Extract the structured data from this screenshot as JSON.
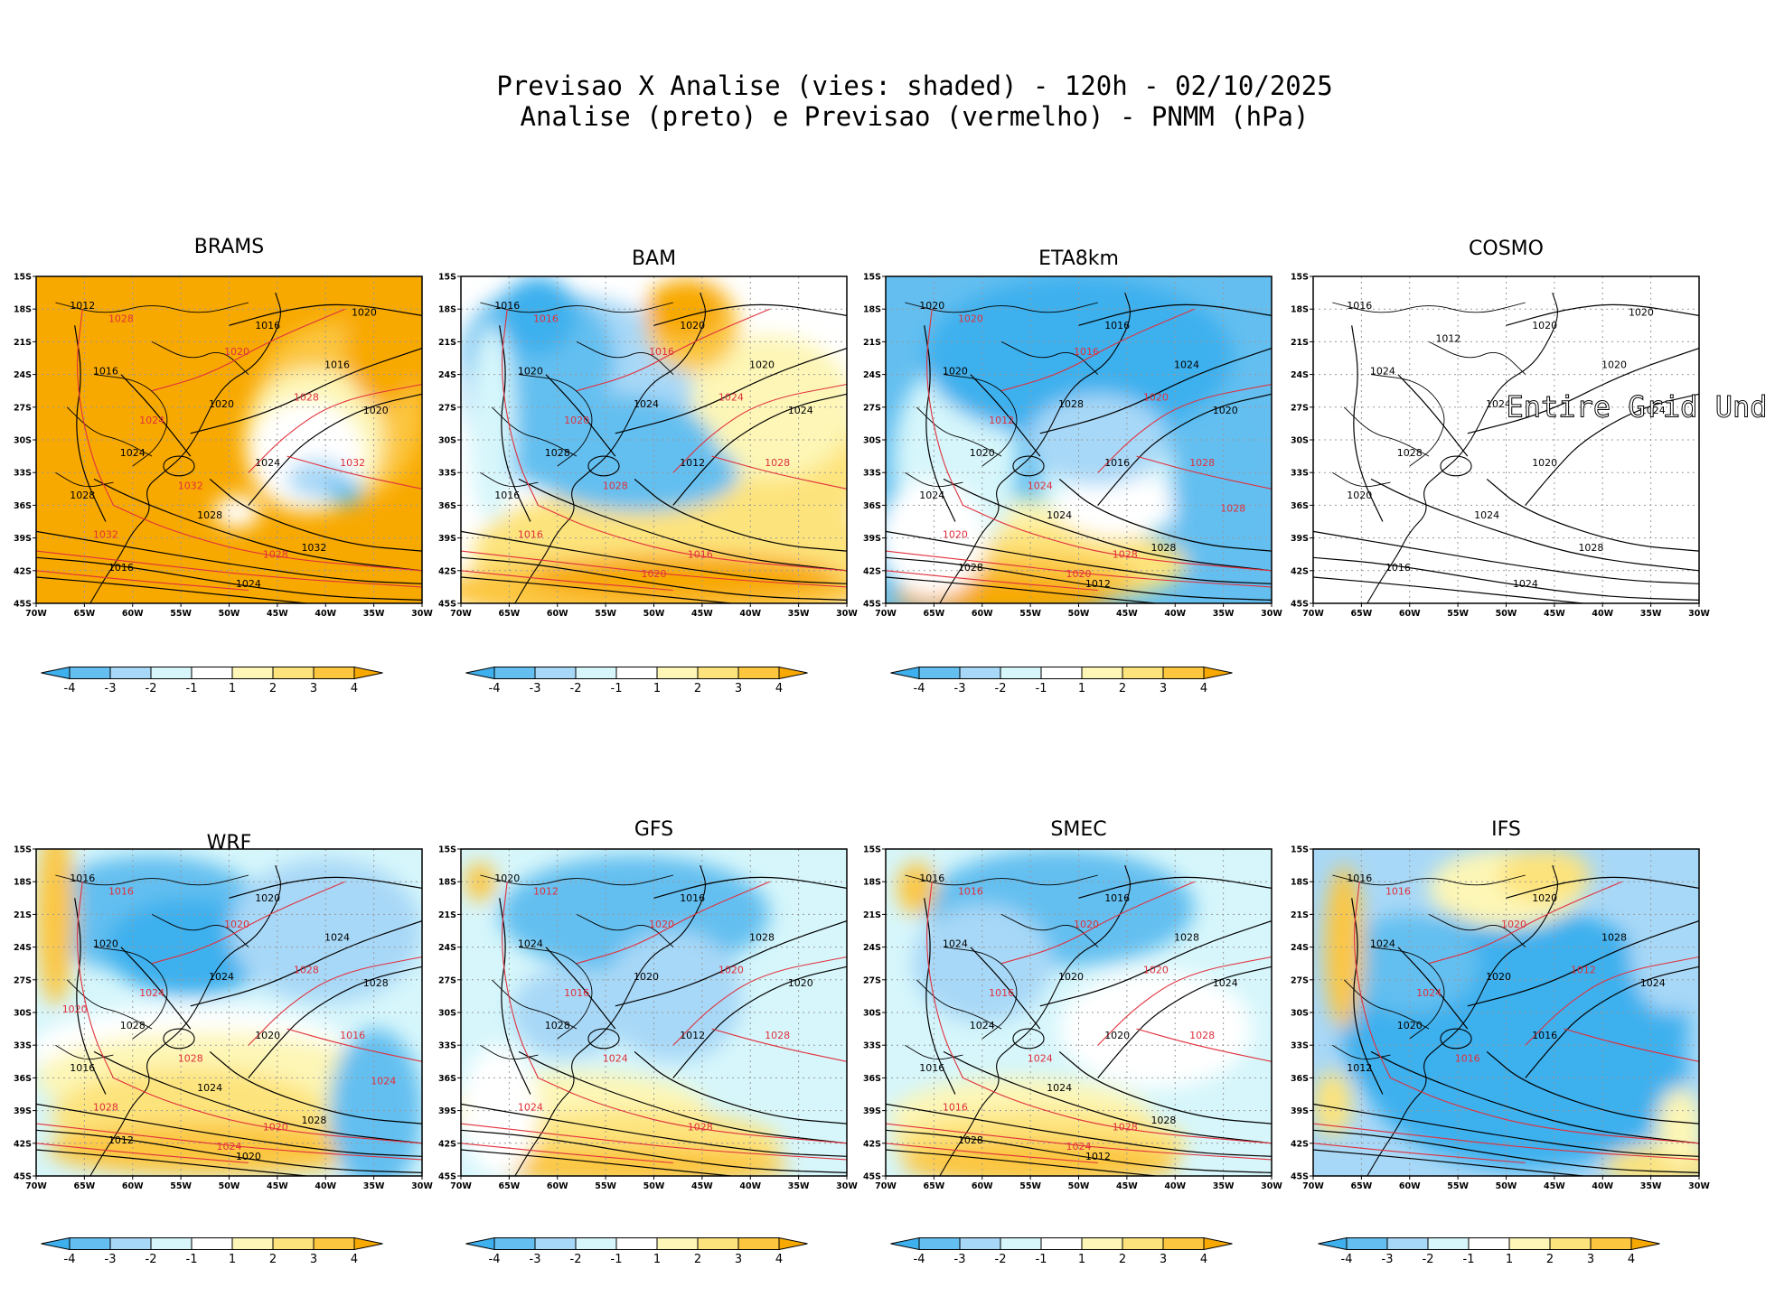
{
  "header": {
    "title_line1": "Previsao X Analise (vies: shaded) - 120h - 02/10/2025",
    "title_line2": "Analise (preto) e Previsao (vermelho) - PNMM (hPa)"
  },
  "axes": {
    "lon_ticks": [
      "70W",
      "65W",
      "60W",
      "55W",
      "50W",
      "45W",
      "40W",
      "35W",
      "30W"
    ],
    "lat_ticks": [
      "15S",
      "18S",
      "21S",
      "24S",
      "27S",
      "30S",
      "33S",
      "36S",
      "39S",
      "42S",
      "45S"
    ]
  },
  "colorbar": {
    "labels": [
      "-4",
      "-3",
      "-2",
      "-1",
      "1",
      "2",
      "3",
      "4"
    ],
    "colors": [
      "#3eb0ee",
      "#64bff0",
      "#a8d8f7",
      "#d6f6fb",
      "#ffffff",
      "#fdf6b6",
      "#fde37c",
      "#fcc63f",
      "#f8a900"
    ]
  },
  "colors": {
    "analysis": "#000000",
    "forecast": "#e0303c",
    "grid": "#9a9a9a"
  },
  "chart_data": [
    {
      "type": "heatmap",
      "model": "BRAMS",
      "title": "BRAMS",
      "bias_pattern": "warm",
      "has_colorbar": true,
      "undefined_message": "",
      "analysis_labels": [
        "1012",
        "1016",
        "1016",
        "1016",
        "1020",
        "1020",
        "1024",
        "1024",
        "1028",
        "1028",
        "1032",
        "1016",
        "1024",
        "1020"
      ],
      "forecast_labels": [
        "1028",
        "1020",
        "1024",
        "1028",
        "1032",
        "1032",
        "1028",
        "1032"
      ]
    },
    {
      "type": "heatmap",
      "model": "BAM",
      "title": "BAM",
      "bias_pattern": "bam",
      "has_colorbar": true,
      "undefined_message": "",
      "analysis_labels": [
        "1016",
        "1020",
        "1020",
        "1020",
        "1024",
        "1024",
        "1028",
        "1012",
        "1016"
      ],
      "forecast_labels": [
        "1016",
        "1016",
        "1020",
        "1024",
        "1028",
        "1028",
        "1016",
        "1016",
        "1020"
      ]
    },
    {
      "type": "heatmap",
      "model": "ETA8km",
      "title": "ETA8km",
      "bias_pattern": "eta",
      "has_colorbar": true,
      "undefined_message": "",
      "analysis_labels": [
        "1020",
        "1016",
        "1020",
        "1024",
        "1028",
        "1020",
        "1020",
        "1016",
        "1024",
        "1024",
        "1028",
        "1028",
        "1012"
      ],
      "forecast_labels": [
        "1020",
        "1016",
        "1012",
        "1020",
        "1024",
        "1028",
        "1028",
        "1020",
        "1020",
        "1028"
      ]
    },
    {
      "type": "heatmap",
      "model": "COSMO",
      "title": "COSMO",
      "bias_pattern": "none",
      "has_colorbar": false,
      "undefined_message": "Entire Grid Und",
      "analysis_labels": [
        "1016",
        "1020",
        "1024",
        "1020",
        "1024",
        "1024",
        "1028",
        "1020",
        "1020",
        "1024",
        "1028",
        "1016",
        "1024",
        "1020",
        "1012"
      ],
      "forecast_labels": []
    },
    {
      "type": "heatmap",
      "model": "WRF",
      "title": "WRF",
      "bias_pattern": "wrf",
      "has_colorbar": true,
      "undefined_message": "",
      "analysis_labels": [
        "1016",
        "1020",
        "1020",
        "1024",
        "1024",
        "1028",
        "1028",
        "1020",
        "1016",
        "1024",
        "1028",
        "1012",
        "1020"
      ],
      "forecast_labels": [
        "1016",
        "1020",
        "1024",
        "1028",
        "1028",
        "1016",
        "1020",
        "1028",
        "1024",
        "1024",
        "1020"
      ]
    },
    {
      "type": "heatmap",
      "model": "GFS",
      "title": "GFS",
      "bias_pattern": "gfs",
      "has_colorbar": true,
      "undefined_message": "",
      "analysis_labels": [
        "1020",
        "1016",
        "1024",
        "1028",
        "1020",
        "1020",
        "1028",
        "1012"
      ],
      "forecast_labels": [
        "1012",
        "1020",
        "1016",
        "1020",
        "1024",
        "1028",
        "1028",
        "1024"
      ]
    },
    {
      "type": "heatmap",
      "model": "SMEC",
      "title": "SMEC",
      "bias_pattern": "smec",
      "has_colorbar": true,
      "undefined_message": "",
      "analysis_labels": [
        "1016",
        "1016",
        "1024",
        "1028",
        "1020",
        "1024",
        "1024",
        "1020",
        "1016",
        "1024",
        "1028",
        "1028",
        "1012"
      ],
      "forecast_labels": [
        "1016",
        "1020",
        "1016",
        "1020",
        "1024",
        "1028",
        "1028",
        "1016",
        "1024"
      ]
    },
    {
      "type": "heatmap",
      "model": "IFS",
      "title": "IFS",
      "bias_pattern": "ifs",
      "has_colorbar": true,
      "undefined_message": "",
      "analysis_labels": [
        "1016",
        "1020",
        "1024",
        "1028",
        "1020",
        "1024",
        "1020",
        "1016",
        "1012"
      ],
      "forecast_labels": [
        "1016",
        "1020",
        "1024",
        "1012",
        "1016"
      ]
    }
  ]
}
